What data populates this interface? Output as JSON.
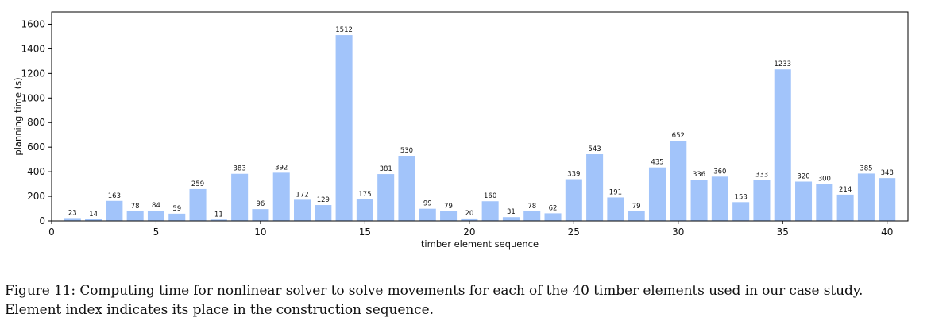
{
  "chart_data": {
    "type": "bar",
    "xlabel": "timber element sequence",
    "ylabel": "planning time (s)",
    "xlim": [
      0,
      41
    ],
    "ylim": [
      0,
      1700
    ],
    "xticks": [
      0,
      5,
      10,
      15,
      20,
      25,
      30,
      35,
      40
    ],
    "yticks": [
      0,
      200,
      400,
      600,
      800,
      1000,
      1200,
      1400,
      1600
    ],
    "bar_color": "#a2c4fa",
    "grid": false,
    "show_data_labels": true,
    "x": [
      1,
      2,
      3,
      4,
      5,
      6,
      7,
      8,
      9,
      10,
      11,
      12,
      13,
      14,
      15,
      16,
      17,
      18,
      19,
      20,
      21,
      22,
      23,
      24,
      25,
      26,
      27,
      28,
      29,
      30,
      31,
      32,
      33,
      34,
      35,
      36,
      37,
      38,
      39,
      40
    ],
    "values": [
      23,
      14,
      163,
      78,
      84,
      59,
      259,
      11,
      383,
      96,
      392,
      172,
      129,
      1512,
      175,
      381,
      530,
      99,
      79,
      20,
      160,
      31,
      78,
      62,
      339,
      543,
      191,
      79,
      435,
      652,
      336,
      360,
      153,
      333,
      1233,
      320,
      300,
      214,
      385,
      348
    ]
  },
  "caption": {
    "line1": "Figure 11: Computing time for nonlinear solver to solve movements for each of the 40 timber elements used in our case study.",
    "line2": "Element index indicates its place in the construction sequence."
  }
}
